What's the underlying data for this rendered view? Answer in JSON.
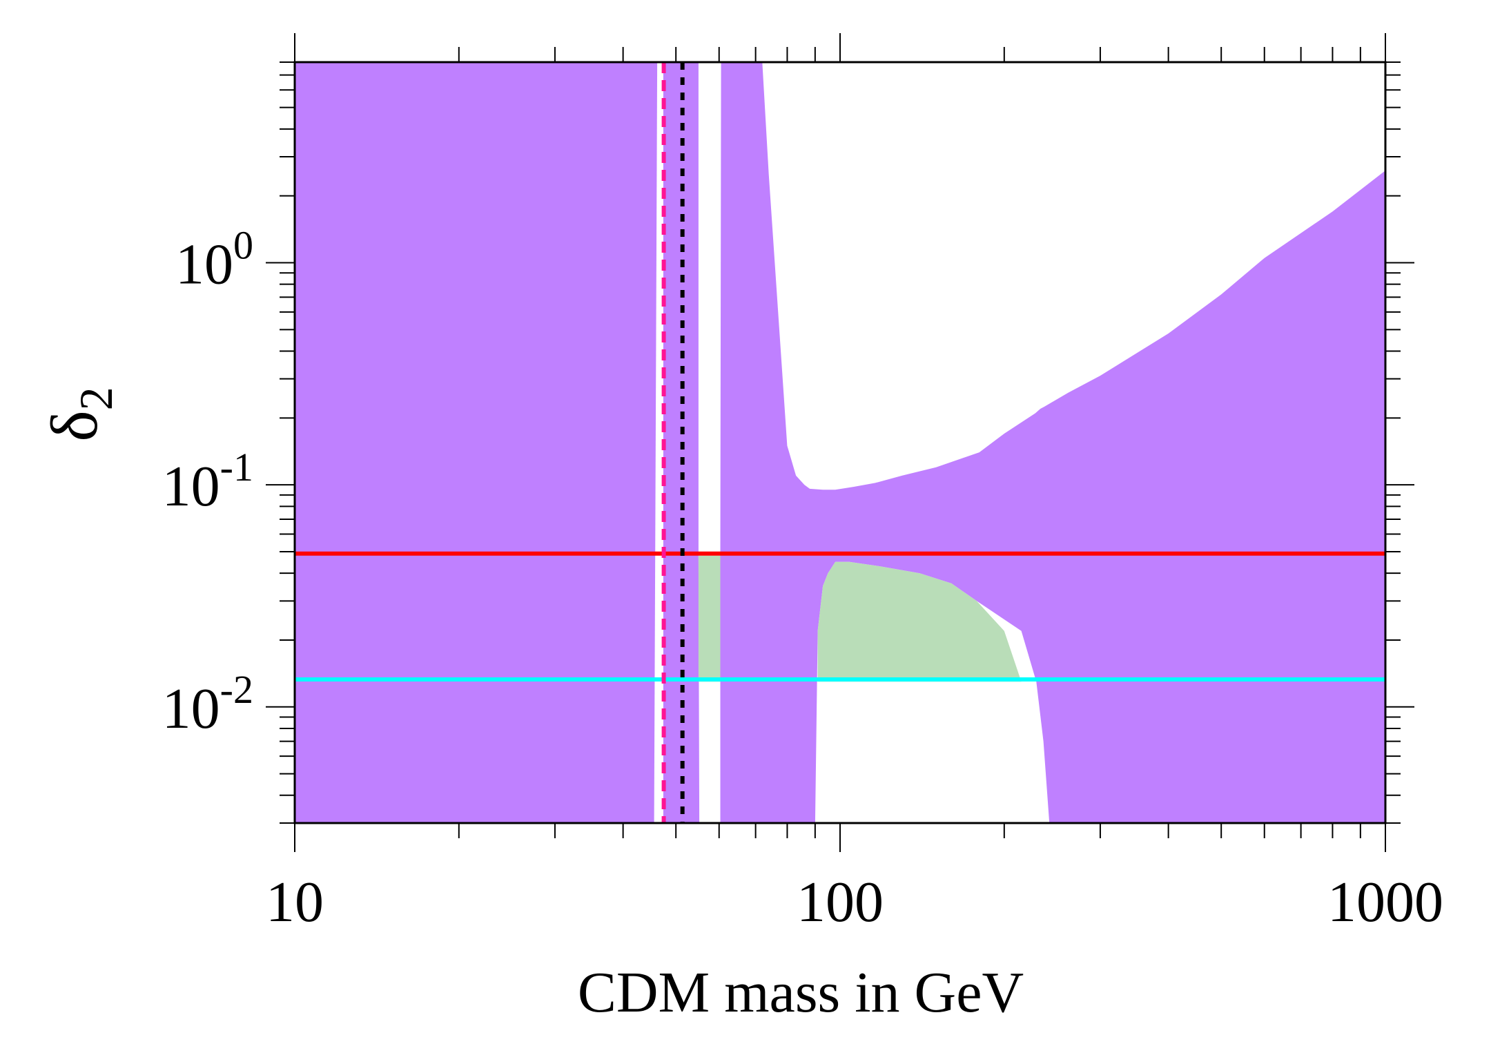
{
  "chart_data": {
    "type": "area",
    "title": "",
    "xlabel": "CDM mass in GeV",
    "ylabel": "δ",
    "ylabel_subscript": "2",
    "xscale": "log",
    "yscale": "log",
    "xlim": [
      10,
      1000
    ],
    "ylim": [
      0.003,
      8
    ],
    "x_ticks": [
      {
        "value": 10,
        "label": "10"
      },
      {
        "value": 100,
        "label": "100"
      },
      {
        "value": 1000,
        "label": "1000"
      }
    ],
    "y_ticks": [
      {
        "value": 1,
        "base": "10",
        "exp": "0"
      },
      {
        "value": 0.1,
        "base": "10",
        "exp": "-1"
      },
      {
        "value": 0.01,
        "base": "10",
        "exp": "-2"
      }
    ],
    "regions": [
      {
        "name": "excluded-left",
        "color": "#bf80ff",
        "polygon": [
          [
            10,
            0.003
          ],
          [
            10,
            8
          ],
          [
            46.2,
            8
          ],
          [
            45.6,
            0.003
          ]
        ]
      },
      {
        "name": "excluded-strip",
        "color": "#bf80ff",
        "polygon": [
          [
            47.4,
            0.003
          ],
          [
            47.4,
            8
          ],
          [
            55,
            8
          ],
          [
            55,
            0.048
          ],
          [
            55.2,
            0.003
          ]
        ]
      },
      {
        "name": "excluded-main",
        "color": "#bf80ff",
        "polygon": [
          [
            60.3,
            0.003
          ],
          [
            60.3,
            0.048
          ],
          [
            60.5,
            8
          ],
          [
            72,
            8
          ],
          [
            74,
            2.5
          ],
          [
            80,
            0.15
          ],
          [
            83,
            0.11
          ],
          [
            86,
            0.1
          ],
          [
            88,
            0.096
          ],
          [
            93,
            0.095
          ],
          [
            98,
            0.095
          ],
          [
            106,
            0.098
          ],
          [
            116,
            0.102
          ],
          [
            130,
            0.11
          ],
          [
            150,
            0.12
          ],
          [
            180,
            0.14
          ],
          [
            200,
            0.17
          ],
          [
            228,
            0.21
          ],
          [
            233,
            0.22
          ],
          [
            237,
            0.225
          ],
          [
            262,
            0.26
          ],
          [
            300,
            0.31
          ],
          [
            400,
            0.48
          ],
          [
            500,
            0.72
          ],
          [
            600,
            1.05
          ],
          [
            800,
            1.7
          ],
          [
            1000,
            2.6
          ],
          [
            1000,
            0.003
          ],
          [
            242,
            0.003
          ],
          [
            236,
            0.007
          ],
          [
            229,
            0.013
          ],
          [
            215,
            0.022
          ],
          [
            178,
            0.03
          ],
          [
            160,
            0.036
          ],
          [
            140,
            0.04
          ],
          [
            118,
            0.043
          ],
          [
            104,
            0.045
          ],
          [
            98,
            0.045
          ],
          [
            95,
            0.04
          ],
          [
            93,
            0.035
          ],
          [
            91,
            0.022
          ],
          [
            90,
            0.003
          ]
        ]
      },
      {
        "name": "allowed-green-strip",
        "color": "#b9ddb8",
        "polygon": [
          [
            55,
            0.013
          ],
          [
            55,
            0.048
          ],
          [
            60.3,
            0.048
          ],
          [
            60.3,
            0.013
          ]
        ]
      },
      {
        "name": "allowed-green-main",
        "color": "#b9ddb8",
        "polygon": [
          [
            91,
            0.013
          ],
          [
            91,
            0.022
          ],
          [
            93,
            0.035
          ],
          [
            95,
            0.04
          ],
          [
            98,
            0.045
          ],
          [
            104,
            0.045
          ],
          [
            118,
            0.043
          ],
          [
            140,
            0.04
          ],
          [
            160,
            0.036
          ],
          [
            178,
            0.03
          ],
          [
            200,
            0.022
          ],
          [
            215,
            0.013
          ]
        ]
      }
    ],
    "hlines": [
      {
        "name": "red-limit",
        "y": 0.049,
        "color": "#ff0000"
      },
      {
        "name": "cyan-limit",
        "y": 0.0133,
        "color": "#00ffff"
      }
    ],
    "vlines": [
      {
        "name": "pink-dashed",
        "x": 47.5,
        "color": "#ff1493",
        "style": "dashed"
      },
      {
        "name": "black-dotted",
        "x": 51.4,
        "color": "#000000",
        "style": "dotted"
      }
    ]
  }
}
